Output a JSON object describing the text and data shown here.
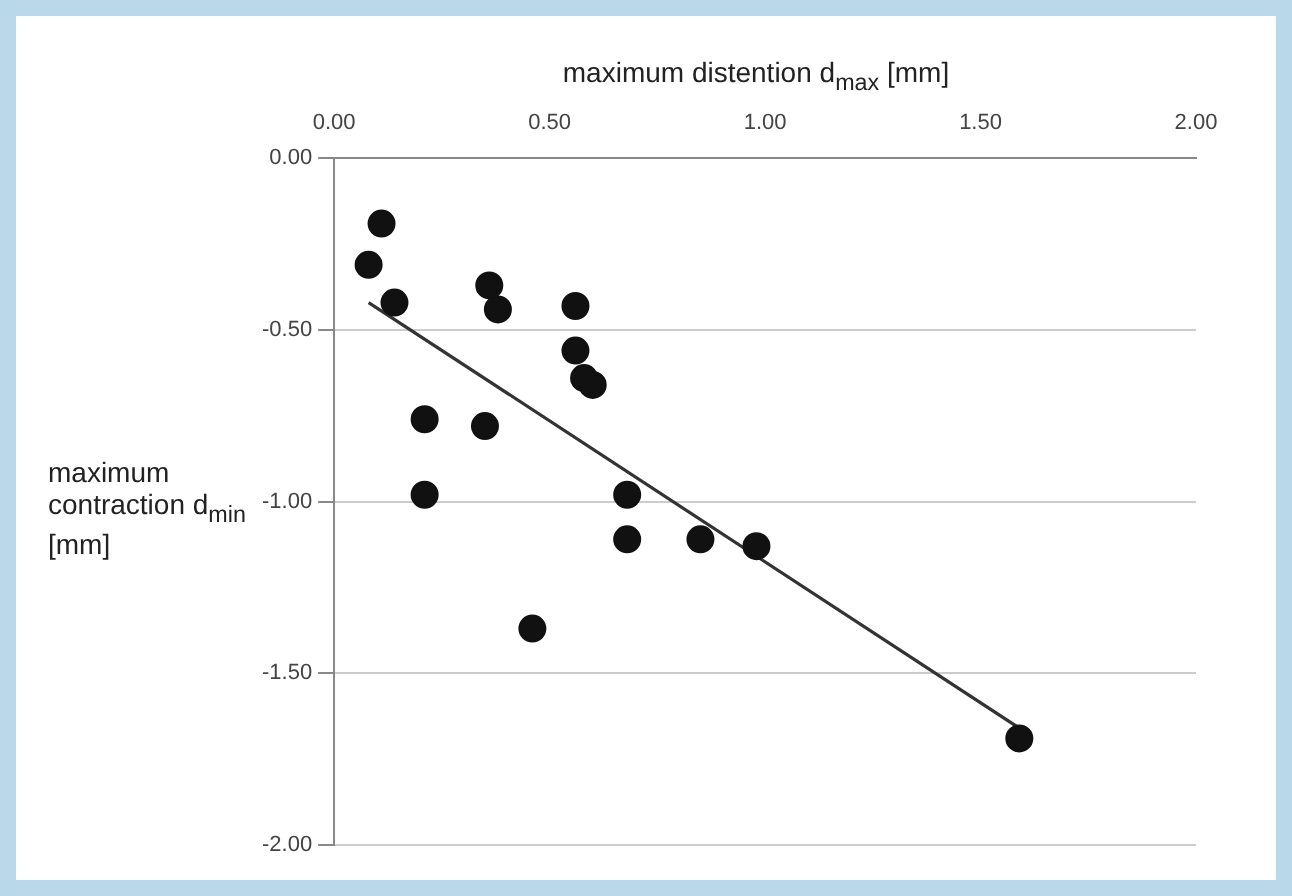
{
  "chart_data": {
    "type": "scatter",
    "xlabel": "maximum distention d$_{max}$ [mm]",
    "ylabel": "maximum contraction d$_{min}$ [mm]",
    "series": [
      {
        "color": "#111111",
        "marker": "circle",
        "x": [
          0.11,
          0.08,
          0.14,
          0.36,
          0.38,
          0.56,
          0.56,
          0.58,
          0.6,
          0.21,
          0.35,
          0.21,
          0.68,
          0.68,
          0.85,
          0.46,
          0.98,
          1.59
        ],
        "values": [
          -0.19,
          -0.31,
          -0.42,
          -0.37,
          -0.44,
          -0.43,
          -0.56,
          -0.64,
          -0.66,
          -0.76,
          -0.78,
          -0.98,
          -0.98,
          -1.11,
          -1.11,
          -1.37,
          -1.13,
          -1.69
        ]
      },
      {
        "type": "line",
        "color": "#333333",
        "marker": "none",
        "x": [
          0.08,
          1.59
        ],
        "values": [
          -0.42,
          -1.66
        ]
      }
    ],
    "xlim": [
      0,
      2
    ],
    "xticks": [
      {
        "value": 0,
        "label": "0.00"
      },
      {
        "value": 0.5,
        "label": "0.50"
      },
      {
        "value": 1,
        "label": "1.00"
      },
      {
        "value": 1.5,
        "label": "1.50"
      },
      {
        "value": 2,
        "label": "2.00"
      }
    ],
    "ylim": [
      -2,
      0
    ],
    "yticks": [
      {
        "value": -2,
        "label": "-2.00"
      },
      {
        "value": -1.5,
        "label": "-1.50"
      },
      {
        "value": -1,
        "label": "-1.00"
      },
      {
        "value": -0.5,
        "label": "-0.50"
      },
      {
        "value": 0,
        "label": "0.00"
      }
    ],
    "grid": "y"
  }
}
